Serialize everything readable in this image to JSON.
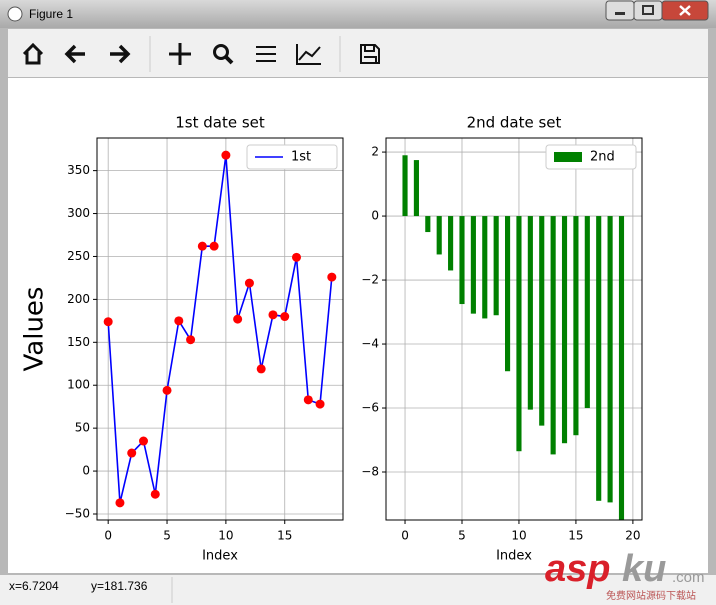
{
  "window": {
    "title": "Figure 1"
  },
  "status": {
    "x": "x=6.7204",
    "y": "y=181.736"
  },
  "watermark": {
    "brand": "asp",
    "brand2": "ku",
    "domain": ".com",
    "tagline": "免费网站源码下载站"
  },
  "chart_data": [
    {
      "type": "line",
      "title": "1st date set",
      "xlabel": "Index",
      "ylabel": "Values",
      "x": [
        0,
        1,
        2,
        3,
        4,
        5,
        6,
        7,
        8,
        9,
        10,
        11,
        12,
        13,
        14,
        15,
        16,
        17,
        18,
        19
      ],
      "series": [
        {
          "name": "1st",
          "color": "#0000ff",
          "marker_color": "#ff0000",
          "values": [
            174,
            -37,
            21,
            35,
            -27,
            94,
            175,
            153,
            262,
            262,
            368,
            177,
            219,
            119,
            182,
            180,
            249,
            83,
            78,
            226
          ]
        }
      ],
      "xlim": [
        -0.95,
        19.95
      ],
      "ylim": [
        -57,
        388
      ],
      "xticks": [
        0,
        5,
        10,
        15
      ],
      "yticks": [
        {
          "value": -50,
          "label": "−50"
        },
        0,
        50,
        100,
        150,
        200,
        250,
        300,
        350
      ],
      "grid": true,
      "legend": "upper right"
    },
    {
      "type": "bar",
      "title": "2nd date set",
      "xlabel": "Index",
      "x": [
        0,
        1,
        2,
        3,
        4,
        5,
        6,
        7,
        8,
        9,
        10,
        11,
        12,
        13,
        14,
        15,
        16,
        17,
        18,
        19
      ],
      "series": [
        {
          "name": "2nd",
          "color": "#008000",
          "values": [
            1.9,
            1.75,
            -0.5,
            -1.2,
            -1.7,
            -2.75,
            -3.05,
            -3.2,
            -3.1,
            -4.85,
            -7.35,
            -6.05,
            -6.55,
            -7.45,
            -7.1,
            -6.85,
            -6.0,
            -8.9,
            -8.95,
            -9.5
          ]
        }
      ],
      "xlim": [
        -1.67,
        20.8
      ],
      "ylim": [
        -9.5,
        2.44
      ],
      "xticks": [
        0,
        5,
        10,
        15,
        20
      ],
      "yticks": [
        {
          "value": -8,
          "label": "−8"
        },
        {
          "value": -6,
          "label": "−6"
        },
        {
          "value": -4,
          "label": "−4"
        },
        {
          "value": -2,
          "label": "−2"
        },
        0,
        2
      ],
      "grid": true,
      "legend": "upper right"
    }
  ]
}
